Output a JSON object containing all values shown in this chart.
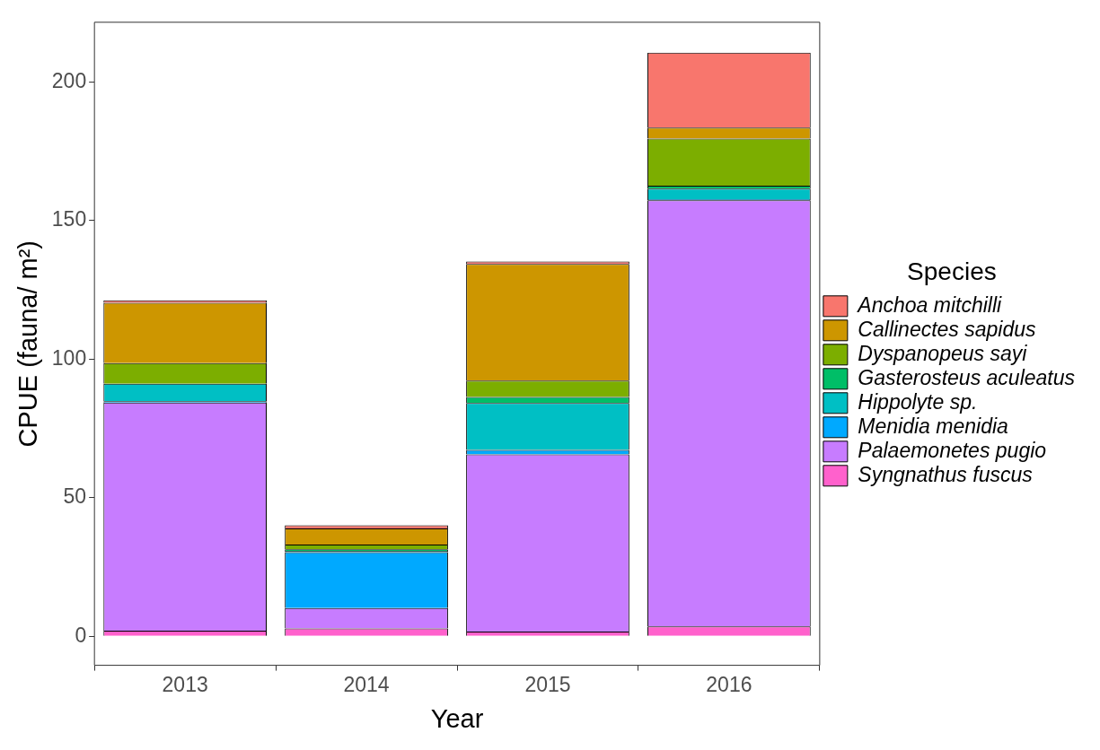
{
  "chart_data": {
    "type": "bar",
    "stacked": true,
    "xlabel": "Year",
    "ylabel": "CPUE (fauna/ m²)",
    "legend_title": "Species",
    "legend": "right",
    "grid": false,
    "categories": [
      "2013",
      "2014",
      "2015",
      "2016"
    ],
    "ylim": [
      -10.5,
      221.5
    ],
    "yticks": [
      0,
      50,
      100,
      150,
      200
    ],
    "series": [
      {
        "name": "Syngnathus fuscus",
        "color": "#ff61cc",
        "values": [
          2,
          2.8,
          1.7,
          3.5
        ]
      },
      {
        "name": "Palaemonetes pugio",
        "color": "#c77cff",
        "values": [
          82.3,
          7.4,
          63.9,
          153.8
        ]
      },
      {
        "name": "Menidia menidia",
        "color": "#00a9ff",
        "values": [
          0.5,
          20.1,
          1.6,
          0.4
        ]
      },
      {
        "name": "Hippolyte sp.",
        "color": "#00bfc4",
        "values": [
          6.3,
          0.5,
          16.9,
          3.8
        ]
      },
      {
        "name": "Gasterosteus aculeatus",
        "color": "#00be67",
        "values": [
          null,
          0.6,
          2.2,
          1.0
        ]
      },
      {
        "name": "Dyspanopeus sayi",
        "color": "#7cae00",
        "values": [
          7.4,
          1.7,
          5.9,
          17.0
        ]
      },
      {
        "name": "Callinectes sapidus",
        "color": "#cd9600",
        "values": [
          21.8,
          5.8,
          42.1,
          4.0
        ]
      },
      {
        "name": "Anchoa mitchilli",
        "color": "#f8766d",
        "values": [
          0.9,
          1.1,
          0.9,
          27.0
        ]
      }
    ]
  }
}
